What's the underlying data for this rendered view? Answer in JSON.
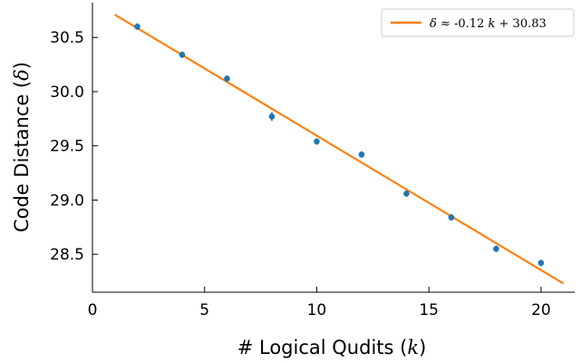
{
  "chart_data": {
    "type": "scatter",
    "xlabel": "# Logical Qudits (k)",
    "xlabel_parts": {
      "prefix": "# Logical Qudits (",
      "var": "k",
      "suffix": ")"
    },
    "ylabel": "Code Distance (δ)",
    "ylabel_parts": {
      "prefix": "Code Distance (",
      "var": "δ",
      "suffix": ")"
    },
    "xlim": [
      0,
      21.5
    ],
    "ylim": [
      28.15,
      30.82
    ],
    "xticks": [
      0,
      5,
      10,
      15,
      20
    ],
    "xtick_labels": [
      "0",
      "5",
      "10",
      "15",
      "20"
    ],
    "yticks": [
      28.5,
      29.0,
      29.5,
      30.0,
      30.5
    ],
    "ytick_labels": [
      "28.5",
      "29.0",
      "29.5",
      "30.0",
      "30.5"
    ],
    "grid": false,
    "legend_position": "top-right",
    "series": [
      {
        "kind": "points_with_error",
        "color": "#1f77b4",
        "x": [
          2,
          4,
          6,
          8,
          10,
          12,
          14,
          16,
          18,
          20
        ],
        "y": [
          30.6,
          30.34,
          30.12,
          29.77,
          29.54,
          29.42,
          29.06,
          28.84,
          28.55,
          28.42
        ],
        "yerr": [
          0.03,
          0.03,
          0.03,
          0.04,
          0.03,
          0.03,
          0.03,
          0.03,
          0.03,
          0.03
        ]
      },
      {
        "kind": "fit_line",
        "name": "δ ≈ -0.12 k + 30.83",
        "name_parts": {
          "lhs": "δ",
          "approx": "≈",
          "coef": "-0.12",
          "var": "k",
          "const": "+ 30.83"
        },
        "color": "#ff7f0e",
        "x": [
          1,
          21
        ],
        "y": [
          30.71,
          28.23
        ]
      }
    ]
  }
}
